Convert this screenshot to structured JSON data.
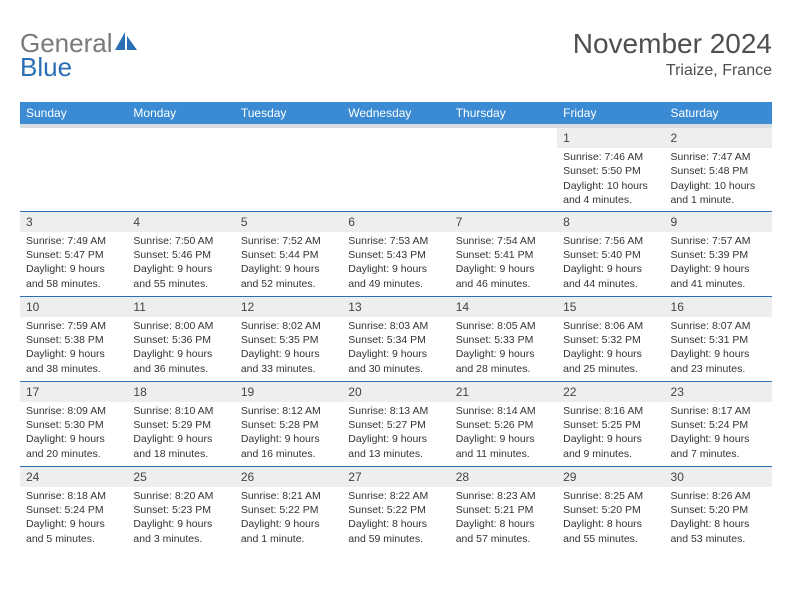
{
  "header": {
    "logo_gray": "General",
    "logo_blue": "Blue",
    "title": "November 2024",
    "subtitle": "Triaize, France"
  },
  "columns": [
    "Sunday",
    "Monday",
    "Tuesday",
    "Wednesday",
    "Thursday",
    "Friday",
    "Saturday"
  ],
  "colors": {
    "header_bg": "#3b8bd4",
    "header_strip": "#d9dde1",
    "row_border": "#2a6fb5",
    "daynum_bg": "#eceef0",
    "text": "#333333",
    "logo_gray": "#7a7a7a",
    "logo_blue": "#2a6fb5",
    "title_gray": "#4f4f4f"
  },
  "days": [
    {
      "n": "",
      "sr": "",
      "ss": "",
      "dl": ""
    },
    {
      "n": "",
      "sr": "",
      "ss": "",
      "dl": ""
    },
    {
      "n": "",
      "sr": "",
      "ss": "",
      "dl": ""
    },
    {
      "n": "",
      "sr": "",
      "ss": "",
      "dl": ""
    },
    {
      "n": "",
      "sr": "",
      "ss": "",
      "dl": ""
    },
    {
      "n": "1",
      "sr": "Sunrise: 7:46 AM",
      "ss": "Sunset: 5:50 PM",
      "dl": "Daylight: 10 hours and 4 minutes."
    },
    {
      "n": "2",
      "sr": "Sunrise: 7:47 AM",
      "ss": "Sunset: 5:48 PM",
      "dl": "Daylight: 10 hours and 1 minute."
    },
    {
      "n": "3",
      "sr": "Sunrise: 7:49 AM",
      "ss": "Sunset: 5:47 PM",
      "dl": "Daylight: 9 hours and 58 minutes."
    },
    {
      "n": "4",
      "sr": "Sunrise: 7:50 AM",
      "ss": "Sunset: 5:46 PM",
      "dl": "Daylight: 9 hours and 55 minutes."
    },
    {
      "n": "5",
      "sr": "Sunrise: 7:52 AM",
      "ss": "Sunset: 5:44 PM",
      "dl": "Daylight: 9 hours and 52 minutes."
    },
    {
      "n": "6",
      "sr": "Sunrise: 7:53 AM",
      "ss": "Sunset: 5:43 PM",
      "dl": "Daylight: 9 hours and 49 minutes."
    },
    {
      "n": "7",
      "sr": "Sunrise: 7:54 AM",
      "ss": "Sunset: 5:41 PM",
      "dl": "Daylight: 9 hours and 46 minutes."
    },
    {
      "n": "8",
      "sr": "Sunrise: 7:56 AM",
      "ss": "Sunset: 5:40 PM",
      "dl": "Daylight: 9 hours and 44 minutes."
    },
    {
      "n": "9",
      "sr": "Sunrise: 7:57 AM",
      "ss": "Sunset: 5:39 PM",
      "dl": "Daylight: 9 hours and 41 minutes."
    },
    {
      "n": "10",
      "sr": "Sunrise: 7:59 AM",
      "ss": "Sunset: 5:38 PM",
      "dl": "Daylight: 9 hours and 38 minutes."
    },
    {
      "n": "11",
      "sr": "Sunrise: 8:00 AM",
      "ss": "Sunset: 5:36 PM",
      "dl": "Daylight: 9 hours and 36 minutes."
    },
    {
      "n": "12",
      "sr": "Sunrise: 8:02 AM",
      "ss": "Sunset: 5:35 PM",
      "dl": "Daylight: 9 hours and 33 minutes."
    },
    {
      "n": "13",
      "sr": "Sunrise: 8:03 AM",
      "ss": "Sunset: 5:34 PM",
      "dl": "Daylight: 9 hours and 30 minutes."
    },
    {
      "n": "14",
      "sr": "Sunrise: 8:05 AM",
      "ss": "Sunset: 5:33 PM",
      "dl": "Daylight: 9 hours and 28 minutes."
    },
    {
      "n": "15",
      "sr": "Sunrise: 8:06 AM",
      "ss": "Sunset: 5:32 PM",
      "dl": "Daylight: 9 hours and 25 minutes."
    },
    {
      "n": "16",
      "sr": "Sunrise: 8:07 AM",
      "ss": "Sunset: 5:31 PM",
      "dl": "Daylight: 9 hours and 23 minutes."
    },
    {
      "n": "17",
      "sr": "Sunrise: 8:09 AM",
      "ss": "Sunset: 5:30 PM",
      "dl": "Daylight: 9 hours and 20 minutes."
    },
    {
      "n": "18",
      "sr": "Sunrise: 8:10 AM",
      "ss": "Sunset: 5:29 PM",
      "dl": "Daylight: 9 hours and 18 minutes."
    },
    {
      "n": "19",
      "sr": "Sunrise: 8:12 AM",
      "ss": "Sunset: 5:28 PM",
      "dl": "Daylight: 9 hours and 16 minutes."
    },
    {
      "n": "20",
      "sr": "Sunrise: 8:13 AM",
      "ss": "Sunset: 5:27 PM",
      "dl": "Daylight: 9 hours and 13 minutes."
    },
    {
      "n": "21",
      "sr": "Sunrise: 8:14 AM",
      "ss": "Sunset: 5:26 PM",
      "dl": "Daylight: 9 hours and 11 minutes."
    },
    {
      "n": "22",
      "sr": "Sunrise: 8:16 AM",
      "ss": "Sunset: 5:25 PM",
      "dl": "Daylight: 9 hours and 9 minutes."
    },
    {
      "n": "23",
      "sr": "Sunrise: 8:17 AM",
      "ss": "Sunset: 5:24 PM",
      "dl": "Daylight: 9 hours and 7 minutes."
    },
    {
      "n": "24",
      "sr": "Sunrise: 8:18 AM",
      "ss": "Sunset: 5:24 PM",
      "dl": "Daylight: 9 hours and 5 minutes."
    },
    {
      "n": "25",
      "sr": "Sunrise: 8:20 AM",
      "ss": "Sunset: 5:23 PM",
      "dl": "Daylight: 9 hours and 3 minutes."
    },
    {
      "n": "26",
      "sr": "Sunrise: 8:21 AM",
      "ss": "Sunset: 5:22 PM",
      "dl": "Daylight: 9 hours and 1 minute."
    },
    {
      "n": "27",
      "sr": "Sunrise: 8:22 AM",
      "ss": "Sunset: 5:22 PM",
      "dl": "Daylight: 8 hours and 59 minutes."
    },
    {
      "n": "28",
      "sr": "Sunrise: 8:23 AM",
      "ss": "Sunset: 5:21 PM",
      "dl": "Daylight: 8 hours and 57 minutes."
    },
    {
      "n": "29",
      "sr": "Sunrise: 8:25 AM",
      "ss": "Sunset: 5:20 PM",
      "dl": "Daylight: 8 hours and 55 minutes."
    },
    {
      "n": "30",
      "sr": "Sunrise: 8:26 AM",
      "ss": "Sunset: 5:20 PM",
      "dl": "Daylight: 8 hours and 53 minutes."
    }
  ]
}
